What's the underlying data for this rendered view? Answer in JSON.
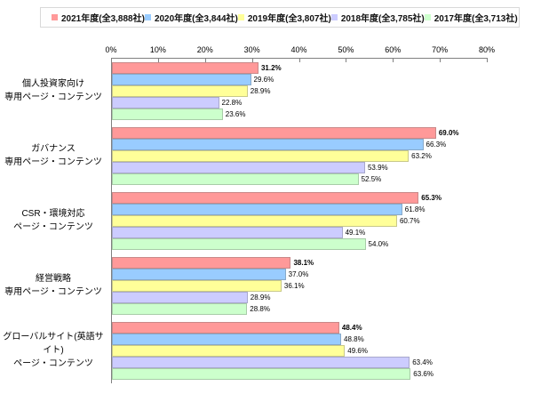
{
  "legend": {
    "position": "top",
    "border_color": "#d9d9d9",
    "background": "#fefefe",
    "items": [
      {
        "label": "2021年度(全3,888社)",
        "color": "#ff9999"
      },
      {
        "label": "2020年度(全3,844社)",
        "color": "#99ccff"
      },
      {
        "label": "2019年度(全3,807社)",
        "color": "#ffff99"
      },
      {
        "label": "2018年度(全3,785社)",
        "color": "#ccccff"
      },
      {
        "label": "2017年度(全3,713社)",
        "color": "#ccffcc"
      }
    ]
  },
  "chart_data": {
    "type": "bar",
    "orientation": "horizontal",
    "title": "",
    "grid": false,
    "legend_position": "top",
    "axis_color": "#808080",
    "categories": [
      [
        "個人投資家向け",
        "専用ページ・コンテンツ"
      ],
      [
        "ガバナンス",
        "専用ページ・コンテンツ"
      ],
      [
        "CSR・環境対応",
        "ページ・コンテンツ"
      ],
      [
        "経営戦略",
        "専用ページ・コンテンツ"
      ],
      [
        "グローバルサイト(英語サイト)",
        "ページ・コンテンツ"
      ]
    ],
    "series": [
      {
        "name": "2021年度(全3,888社)",
        "color": "#ff9999",
        "border_color": "#c98888",
        "label_bold": true,
        "values": [
          31.2,
          69.0,
          65.3,
          38.1,
          48.4
        ]
      },
      {
        "name": "2020年度(全3,844社)",
        "color": "#99ccff",
        "border_color": "#88a9c9",
        "label_bold": false,
        "values": [
          29.6,
          66.3,
          61.8,
          37.0,
          48.8
        ]
      },
      {
        "name": "2019年度(全3,807社)",
        "color": "#ffff99",
        "border_color": "#c9c988",
        "label_bold": false,
        "values": [
          28.9,
          63.2,
          60.7,
          36.1,
          49.6
        ]
      },
      {
        "name": "2018年度(全3,785社)",
        "color": "#ccccff",
        "border_color": "#a8a8cc",
        "label_bold": false,
        "values": [
          22.8,
          53.9,
          49.1,
          28.9,
          63.4
        ]
      },
      {
        "name": "2017年度(全3,713社)",
        "color": "#ccffcc",
        "border_color": "#a8cca8",
        "label_bold": false,
        "values": [
          23.6,
          52.5,
          54.0,
          28.8,
          63.6
        ]
      }
    ],
    "x_axis": {
      "min": 0,
      "max": 80,
      "tick_step": 10,
      "tick_labels": [
        "0%",
        "10%",
        "20%",
        "30%",
        "40%",
        "50%",
        "60%",
        "70%",
        "80%"
      ]
    },
    "value_labels": true,
    "value_label_suffix": "%"
  }
}
